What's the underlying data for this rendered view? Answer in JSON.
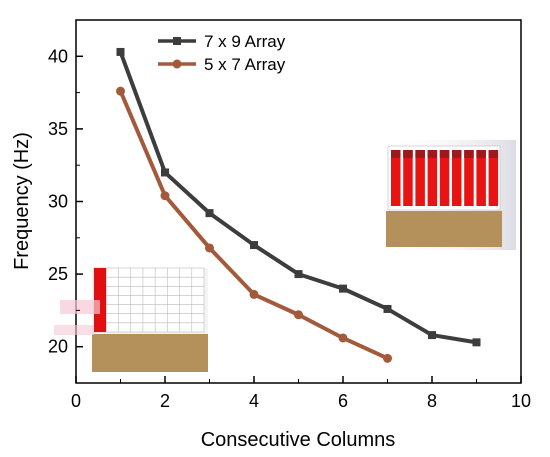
{
  "chart_data": {
    "type": "line",
    "title": "",
    "xlabel": "Consecutive Columns",
    "ylabel": "Frequency (Hz)",
    "xlim": [
      0,
      10
    ],
    "ylim": [
      17.5,
      42.5
    ],
    "x_ticks": [
      0,
      2,
      4,
      6,
      8,
      10
    ],
    "y_ticks": [
      20,
      25,
      30,
      35,
      40
    ],
    "grid": false,
    "legend_position": "top-left",
    "series": [
      {
        "name": "7 x 9 Array",
        "color": "#3d3d3d",
        "marker": "square",
        "x": [
          1,
          2,
          3,
          4,
          5,
          6,
          7,
          8,
          9
        ],
        "y": [
          40.3,
          32.0,
          29.2,
          27.0,
          25.0,
          24.0,
          22.6,
          20.8,
          20.3
        ]
      },
      {
        "name": "5 x 7 Array",
        "color": "#a35a3a",
        "marker": "circle",
        "x": [
          1,
          2,
          3,
          4,
          5,
          6,
          7
        ],
        "y": [
          37.6,
          30.4,
          26.8,
          23.6,
          22.2,
          20.6,
          19.2
        ]
      }
    ],
    "insets": [
      {
        "name": "inset-5x7-array-image",
        "icon": "grid-array-photo-icon",
        "highlighted_columns": 1
      },
      {
        "name": "inset-7x9-array-image",
        "icon": "grid-array-photo-icon",
        "highlighted_columns": 9
      }
    ]
  }
}
